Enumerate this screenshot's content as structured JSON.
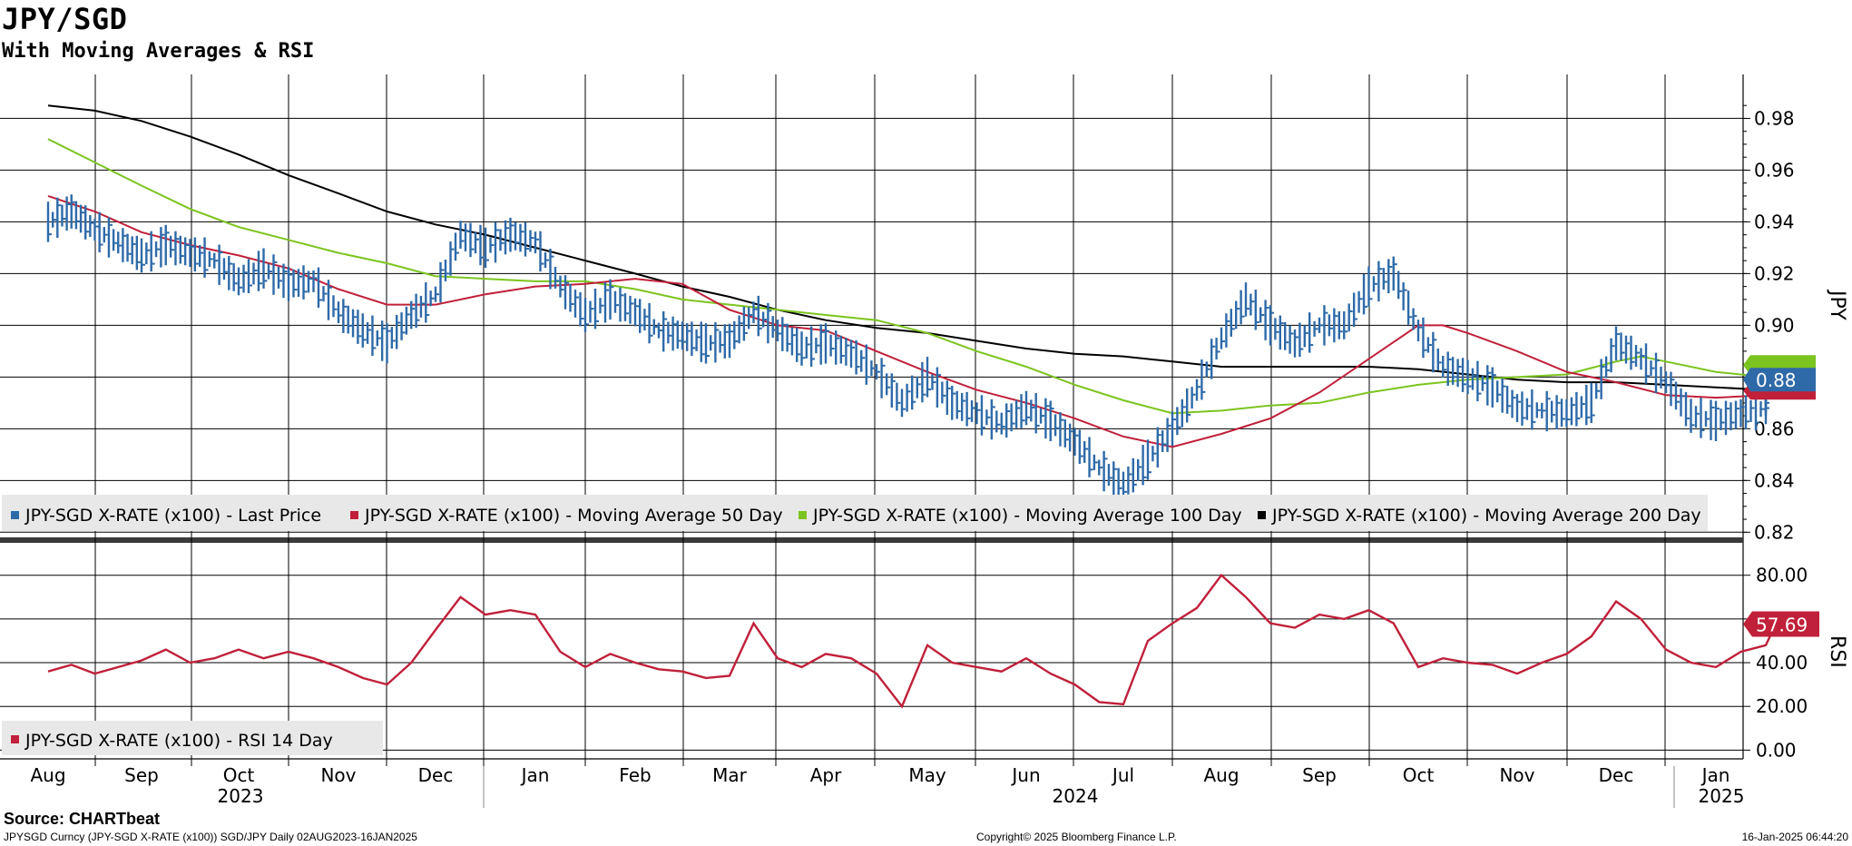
{
  "header": {
    "title": "JPY/SGD",
    "subtitle": "With Moving Averages & RSI"
  },
  "footer": {
    "source": "Source: CHARTbeat",
    "left": "JPYSGD Curncy (JPY-SGD X-RATE (x100)) SGD/JPY  Daily 02AUG2023-16JAN2025",
    "center": "Copyright© 2025 Bloomberg Finance L.P.",
    "right": "16-Jan-2025 06:44:20"
  },
  "colors": {
    "price": "#2e6aa8",
    "ma50": "#c0203a",
    "ma100": "#7cc41f",
    "ma200": "#000000",
    "rsi": "#c0203a"
  },
  "chart_data": [
    {
      "type": "line",
      "panel": "price",
      "ylabel": "JPY",
      "ylim": [
        0.818,
        0.997
      ],
      "yticks": [
        "0.98",
        "0.96",
        "0.94",
        "0.92",
        "0.90",
        "0.88",
        "0.86",
        "0.84",
        "0.82"
      ],
      "x_months": [
        "Aug",
        "Sep",
        "Oct",
        "Nov",
        "Dec",
        "Jan",
        "Feb",
        "Mar",
        "Apr",
        "May",
        "Jun",
        "Jul",
        "Aug",
        "Sep",
        "Oct",
        "Nov",
        "Dec",
        "Jan"
      ],
      "years": [
        "2023",
        "2024",
        "2025"
      ],
      "legend": [
        "JPY-SGD X-RATE (x100) - Last Price",
        "JPY-SGD X-RATE (x100) - Moving Average 50 Day",
        "JPY-SGD X-RATE (x100) - Moving Average 100 Day",
        "JPY-SGD X-RATE (x100) - Moving Average 200 Day"
      ],
      "last_value_label": "0.88",
      "series": [
        {
          "name": "JPY-SGD X-RATE (x100) - Last Price",
          "points": [
            [
              0,
              0.94
            ],
            [
              0.25,
              0.944
            ],
            [
              0.5,
              0.937
            ],
            [
              0.75,
              0.932
            ],
            [
              1.0,
              0.927
            ],
            [
              1.25,
              0.931
            ],
            [
              1.5,
              0.928
            ],
            [
              1.75,
              0.925
            ],
            [
              2.0,
              0.917
            ],
            [
              2.25,
              0.922
            ],
            [
              2.5,
              0.916
            ],
            [
              2.75,
              0.917
            ],
            [
              3.0,
              0.905
            ],
            [
              3.25,
              0.898
            ],
            [
              3.5,
              0.893
            ],
            [
              3.75,
              0.904
            ],
            [
              4.0,
              0.912
            ],
            [
              4.25,
              0.935
            ],
            [
              4.5,
              0.93
            ],
            [
              4.75,
              0.935
            ],
            [
              5.0,
              0.932
            ],
            [
              5.25,
              0.915
            ],
            [
              5.5,
              0.904
            ],
            [
              5.75,
              0.91
            ],
            [
              6.0,
              0.905
            ],
            [
              6.25,
              0.898
            ],
            [
              6.5,
              0.896
            ],
            [
              6.75,
              0.893
            ],
            [
              7.0,
              0.894
            ],
            [
              7.25,
              0.905
            ],
            [
              7.5,
              0.898
            ],
            [
              7.75,
              0.891
            ],
            [
              8.0,
              0.893
            ],
            [
              8.25,
              0.889
            ],
            [
              8.5,
              0.882
            ],
            [
              8.75,
              0.87
            ],
            [
              9.0,
              0.88
            ],
            [
              9.25,
              0.87
            ],
            [
              9.5,
              0.866
            ],
            [
              9.75,
              0.862
            ],
            [
              10.0,
              0.868
            ],
            [
              10.25,
              0.863
            ],
            [
              10.5,
              0.855
            ],
            [
              10.75,
              0.845
            ],
            [
              11.0,
              0.838
            ],
            [
              11.25,
              0.848
            ],
            [
              11.5,
              0.86
            ],
            [
              11.75,
              0.875
            ],
            [
              12.0,
              0.895
            ],
            [
              12.25,
              0.91
            ],
            [
              12.5,
              0.9
            ],
            [
              12.75,
              0.893
            ],
            [
              13.0,
              0.9
            ],
            [
              13.25,
              0.9
            ],
            [
              13.5,
              0.915
            ],
            [
              13.75,
              0.92
            ],
            [
              14.0,
              0.898
            ],
            [
              14.25,
              0.884
            ],
            [
              14.5,
              0.88
            ],
            [
              14.75,
              0.876
            ],
            [
              15.0,
              0.868
            ],
            [
              15.25,
              0.867
            ],
            [
              15.5,
              0.866
            ],
            [
              15.75,
              0.87
            ],
            [
              16.0,
              0.893
            ],
            [
              16.25,
              0.887
            ],
            [
              16.5,
              0.878
            ],
            [
              16.75,
              0.865
            ],
            [
              17.0,
              0.863
            ],
            [
              17.25,
              0.866
            ],
            [
              17.5,
              0.868
            ],
            [
              17.5,
              0.876
            ]
          ]
        },
        {
          "name": "JPY-SGD X-RATE (x100) - Moving Average 50 Day",
          "points": [
            [
              0,
              0.95
            ],
            [
              0.5,
              0.944
            ],
            [
              1.0,
              0.936
            ],
            [
              1.5,
              0.931
            ],
            [
              2.0,
              0.927
            ],
            [
              2.5,
              0.922
            ],
            [
              3.0,
              0.914
            ],
            [
              3.5,
              0.908
            ],
            [
              4.0,
              0.908
            ],
            [
              4.5,
              0.912
            ],
            [
              5.0,
              0.915
            ],
            [
              5.5,
              0.916
            ],
            [
              6.0,
              0.918
            ],
            [
              6.5,
              0.916
            ],
            [
              7.0,
              0.906
            ],
            [
              7.5,
              0.9
            ],
            [
              8.0,
              0.898
            ],
            [
              8.5,
              0.89
            ],
            [
              9.0,
              0.882
            ],
            [
              9.5,
              0.875
            ],
            [
              10.0,
              0.87
            ],
            [
              10.5,
              0.864
            ],
            [
              11.0,
              0.857
            ],
            [
              11.5,
              0.853
            ],
            [
              12.0,
              0.858
            ],
            [
              12.5,
              0.864
            ],
            [
              13.0,
              0.874
            ],
            [
              13.5,
              0.887
            ],
            [
              14.0,
              0.9
            ],
            [
              14.25,
              0.9
            ],
            [
              14.5,
              0.897
            ],
            [
              15.0,
              0.89
            ],
            [
              15.5,
              0.882
            ],
            [
              16.0,
              0.878
            ],
            [
              16.5,
              0.873
            ],
            [
              17.0,
              0.872
            ],
            [
              17.5,
              0.873
            ]
          ]
        },
        {
          "name": "JPY-SGD X-RATE (x100) - Moving Average 100 Day",
          "points": [
            [
              0,
              0.972
            ],
            [
              0.5,
              0.963
            ],
            [
              1.0,
              0.954
            ],
            [
              1.5,
              0.945
            ],
            [
              2.0,
              0.938
            ],
            [
              2.5,
              0.933
            ],
            [
              3.0,
              0.928
            ],
            [
              3.5,
              0.924
            ],
            [
              4.0,
              0.919
            ],
            [
              4.5,
              0.918
            ],
            [
              5.0,
              0.917
            ],
            [
              5.5,
              0.917
            ],
            [
              6.0,
              0.914
            ],
            [
              6.5,
              0.91
            ],
            [
              7.0,
              0.908
            ],
            [
              7.5,
              0.906
            ],
            [
              8.0,
              0.904
            ],
            [
              8.5,
              0.902
            ],
            [
              9.0,
              0.897
            ],
            [
              9.5,
              0.89
            ],
            [
              10.0,
              0.884
            ],
            [
              10.5,
              0.877
            ],
            [
              11.0,
              0.871
            ],
            [
              11.5,
              0.866
            ],
            [
              12.0,
              0.867
            ],
            [
              12.5,
              0.869
            ],
            [
              13.0,
              0.87
            ],
            [
              13.5,
              0.874
            ],
            [
              14.0,
              0.877
            ],
            [
              14.5,
              0.879
            ],
            [
              15.0,
              0.88
            ],
            [
              15.5,
              0.881
            ],
            [
              16.0,
              0.886
            ],
            [
              16.25,
              0.888
            ],
            [
              16.5,
              0.886
            ],
            [
              17.0,
              0.882
            ],
            [
              17.5,
              0.88
            ]
          ]
        },
        {
          "name": "JPY-SGD X-RATE (x100) - Moving Average 200 Day",
          "points": [
            [
              0,
              0.985
            ],
            [
              0.5,
              0.983
            ],
            [
              1.0,
              0.979
            ],
            [
              1.5,
              0.973
            ],
            [
              2.0,
              0.966
            ],
            [
              2.5,
              0.958
            ],
            [
              3.0,
              0.951
            ],
            [
              3.5,
              0.944
            ],
            [
              4.0,
              0.939
            ],
            [
              4.5,
              0.935
            ],
            [
              5.0,
              0.93
            ],
            [
              5.5,
              0.925
            ],
            [
              6.0,
              0.92
            ],
            [
              6.5,
              0.915
            ],
            [
              7.0,
              0.911
            ],
            [
              7.5,
              0.906
            ],
            [
              8.0,
              0.902
            ],
            [
              8.5,
              0.899
            ],
            [
              9.0,
              0.897
            ],
            [
              9.5,
              0.894
            ],
            [
              10.0,
              0.891
            ],
            [
              10.5,
              0.889
            ],
            [
              11.0,
              0.888
            ],
            [
              11.5,
              0.886
            ],
            [
              12.0,
              0.884
            ],
            [
              12.5,
              0.884
            ],
            [
              13.0,
              0.884
            ],
            [
              13.5,
              0.884
            ],
            [
              14.0,
              0.883
            ],
            [
              14.5,
              0.881
            ],
            [
              15.0,
              0.879
            ],
            [
              15.5,
              0.878
            ],
            [
              16.0,
              0.878
            ],
            [
              16.5,
              0.877
            ],
            [
              17.0,
              0.876
            ],
            [
              17.5,
              0.875
            ]
          ]
        }
      ]
    },
    {
      "type": "line",
      "panel": "rsi",
      "ylabel": "RSI",
      "ylim": [
        -4,
        94
      ],
      "yticks": [
        "80.00",
        "60.00",
        "40.00",
        "20.00",
        "0.00"
      ],
      "legend": [
        "JPY-SGD X-RATE (x100) - RSI 14 Day"
      ],
      "last_value_label": "57.69",
      "series": [
        {
          "name": "JPY-SGD X-RATE (x100) - RSI 14 Day",
          "points": [
            [
              0,
              36
            ],
            [
              0.25,
              39
            ],
            [
              0.5,
              35
            ],
            [
              0.75,
              38
            ],
            [
              1.0,
              41
            ],
            [
              1.25,
              46
            ],
            [
              1.5,
              40
            ],
            [
              1.75,
              42
            ],
            [
              2.0,
              46
            ],
            [
              2.25,
              42
            ],
            [
              2.5,
              45
            ],
            [
              2.75,
              42
            ],
            [
              3.0,
              38
            ],
            [
              3.25,
              33
            ],
            [
              3.5,
              30
            ],
            [
              3.75,
              40
            ],
            [
              4.0,
              55
            ],
            [
              4.25,
              70
            ],
            [
              4.5,
              62
            ],
            [
              4.75,
              64
            ],
            [
              5.0,
              62
            ],
            [
              5.25,
              45
            ],
            [
              5.5,
              38
            ],
            [
              5.75,
              44
            ],
            [
              6.0,
              40
            ],
            [
              6.25,
              37
            ],
            [
              6.5,
              36
            ],
            [
              6.75,
              33
            ],
            [
              7.0,
              34
            ],
            [
              7.25,
              58
            ],
            [
              7.5,
              42
            ],
            [
              7.75,
              38
            ],
            [
              8.0,
              44
            ],
            [
              8.25,
              42
            ],
            [
              8.5,
              35
            ],
            [
              8.75,
              20
            ],
            [
              9.0,
              48
            ],
            [
              9.25,
              40
            ],
            [
              9.5,
              38
            ],
            [
              9.75,
              36
            ],
            [
              10.0,
              42
            ],
            [
              10.25,
              35
            ],
            [
              10.5,
              30
            ],
            [
              10.75,
              22
            ],
            [
              11.0,
              21
            ],
            [
              11.25,
              50
            ],
            [
              11.5,
              58
            ],
            [
              11.75,
              65
            ],
            [
              12.0,
              80
            ],
            [
              12.25,
              70
            ],
            [
              12.5,
              58
            ],
            [
              12.75,
              56
            ],
            [
              13.0,
              62
            ],
            [
              13.25,
              60
            ],
            [
              13.5,
              64
            ],
            [
              13.75,
              58
            ],
            [
              14.0,
              38
            ],
            [
              14.25,
              42
            ],
            [
              14.5,
              40
            ],
            [
              14.75,
              39
            ],
            [
              15.0,
              35
            ],
            [
              15.25,
              40
            ],
            [
              15.5,
              44
            ],
            [
              15.75,
              52
            ],
            [
              16.0,
              68
            ],
            [
              16.25,
              60
            ],
            [
              16.5,
              46
            ],
            [
              16.75,
              40
            ],
            [
              17.0,
              38
            ],
            [
              17.25,
              45
            ],
            [
              17.5,
              48
            ],
            [
              17.6,
              57.69
            ]
          ]
        }
      ]
    }
  ]
}
